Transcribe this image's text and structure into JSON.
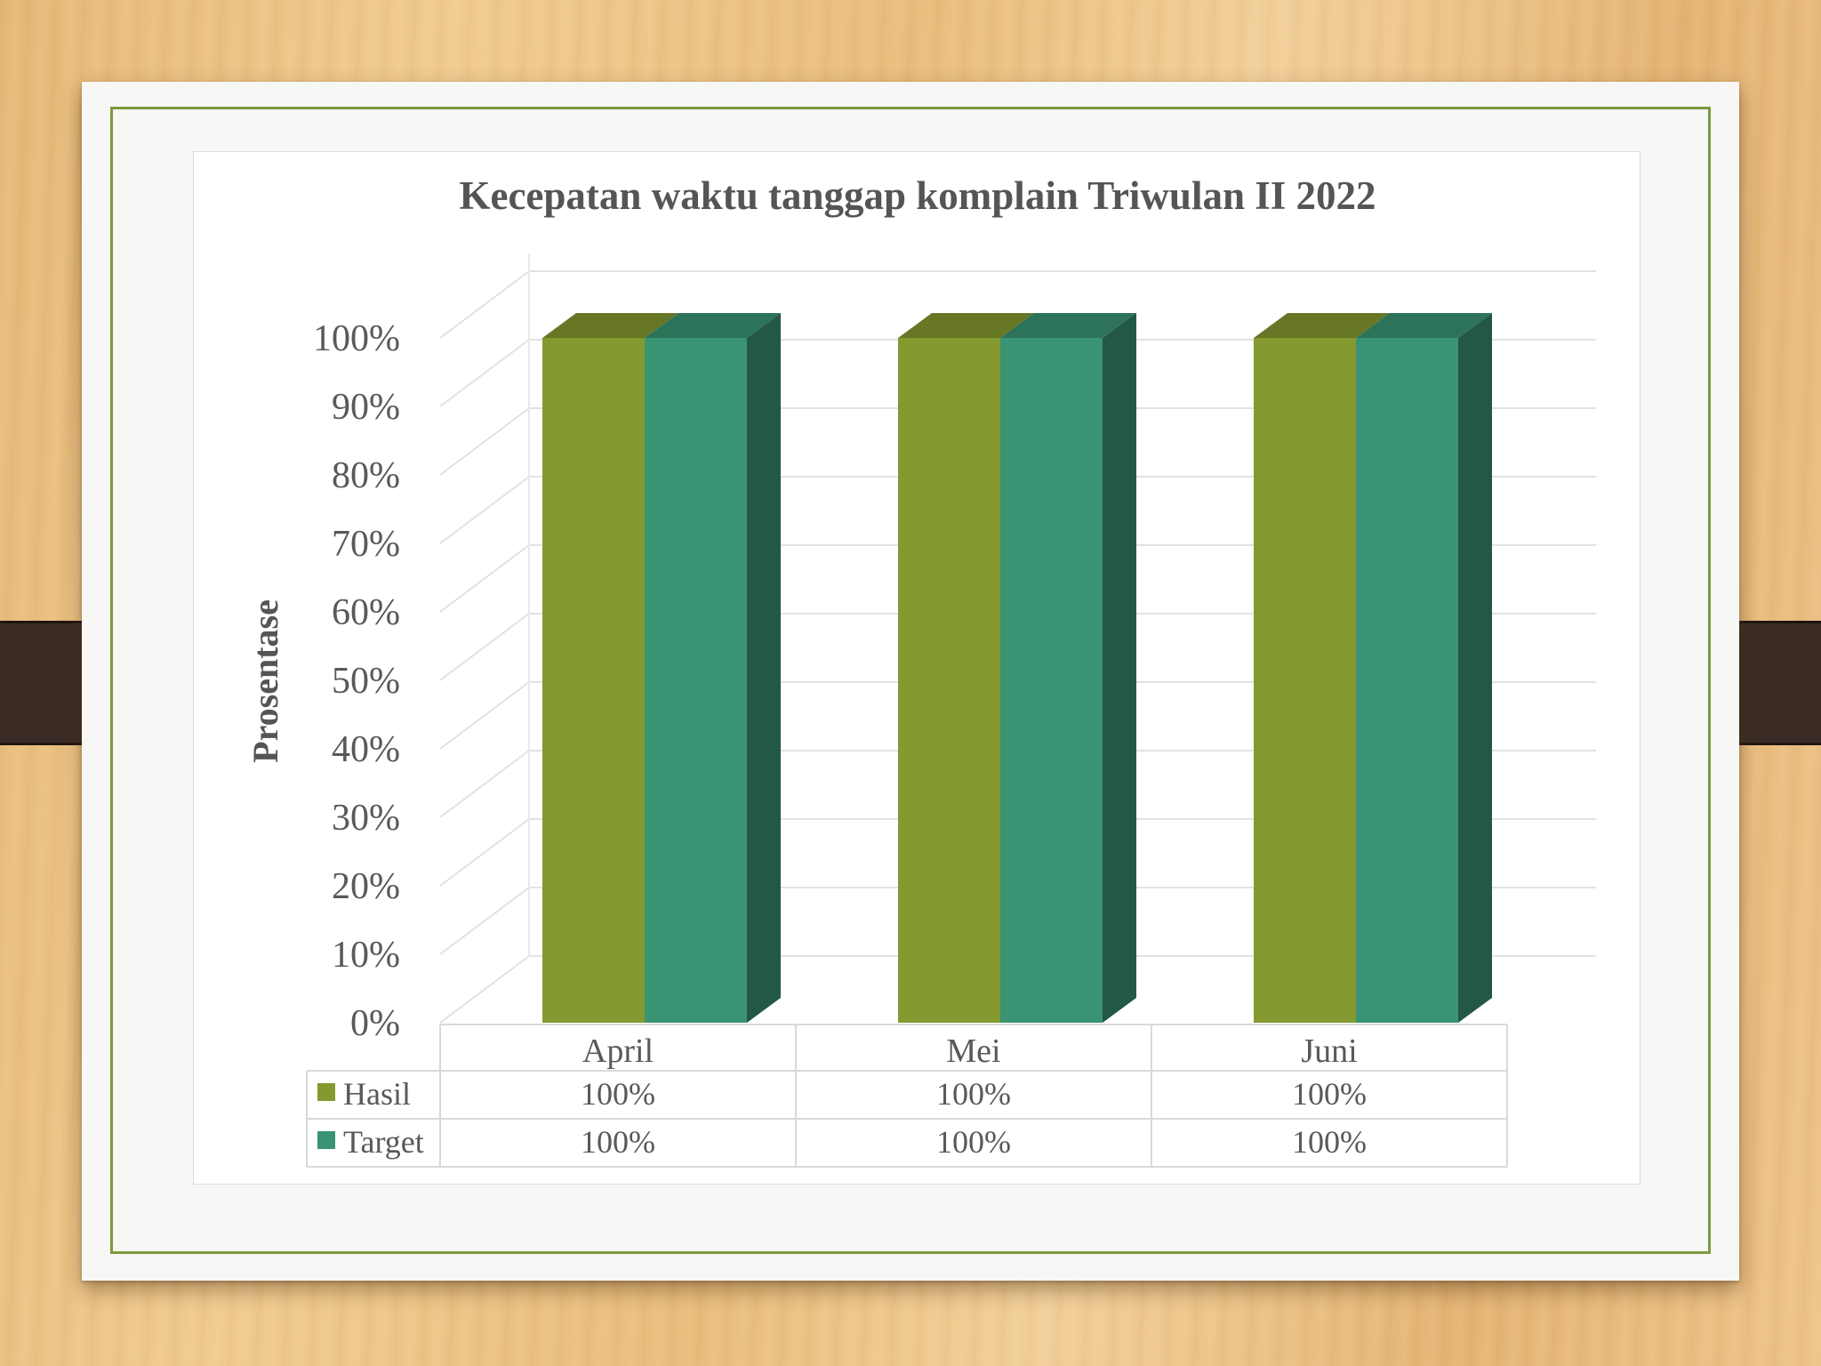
{
  "chart_data": {
    "type": "bar",
    "title": "Kecepatan waktu tanggap komplain Triwulan II 2022",
    "xlabel": "",
    "ylabel": "Prosentase",
    "categories": [
      "April",
      "Mei",
      "Juni"
    ],
    "y_ticks": [
      "0%",
      "10%",
      "20%",
      "30%",
      "40%",
      "50%",
      "60%",
      "70%",
      "80%",
      "90%",
      "100%"
    ],
    "ylim": [
      0,
      100
    ],
    "grid": true,
    "legend": "data-table",
    "series": [
      {
        "name": "Hasil",
        "values": [
          100,
          100,
          100
        ],
        "color": "#84992f",
        "labels": [
          "100%",
          "100%",
          "100%"
        ]
      },
      {
        "name": "Target",
        "values": [
          100,
          100,
          100
        ],
        "color": "#3a9373",
        "labels": [
          "100%",
          "100%",
          "100%"
        ]
      }
    ]
  }
}
